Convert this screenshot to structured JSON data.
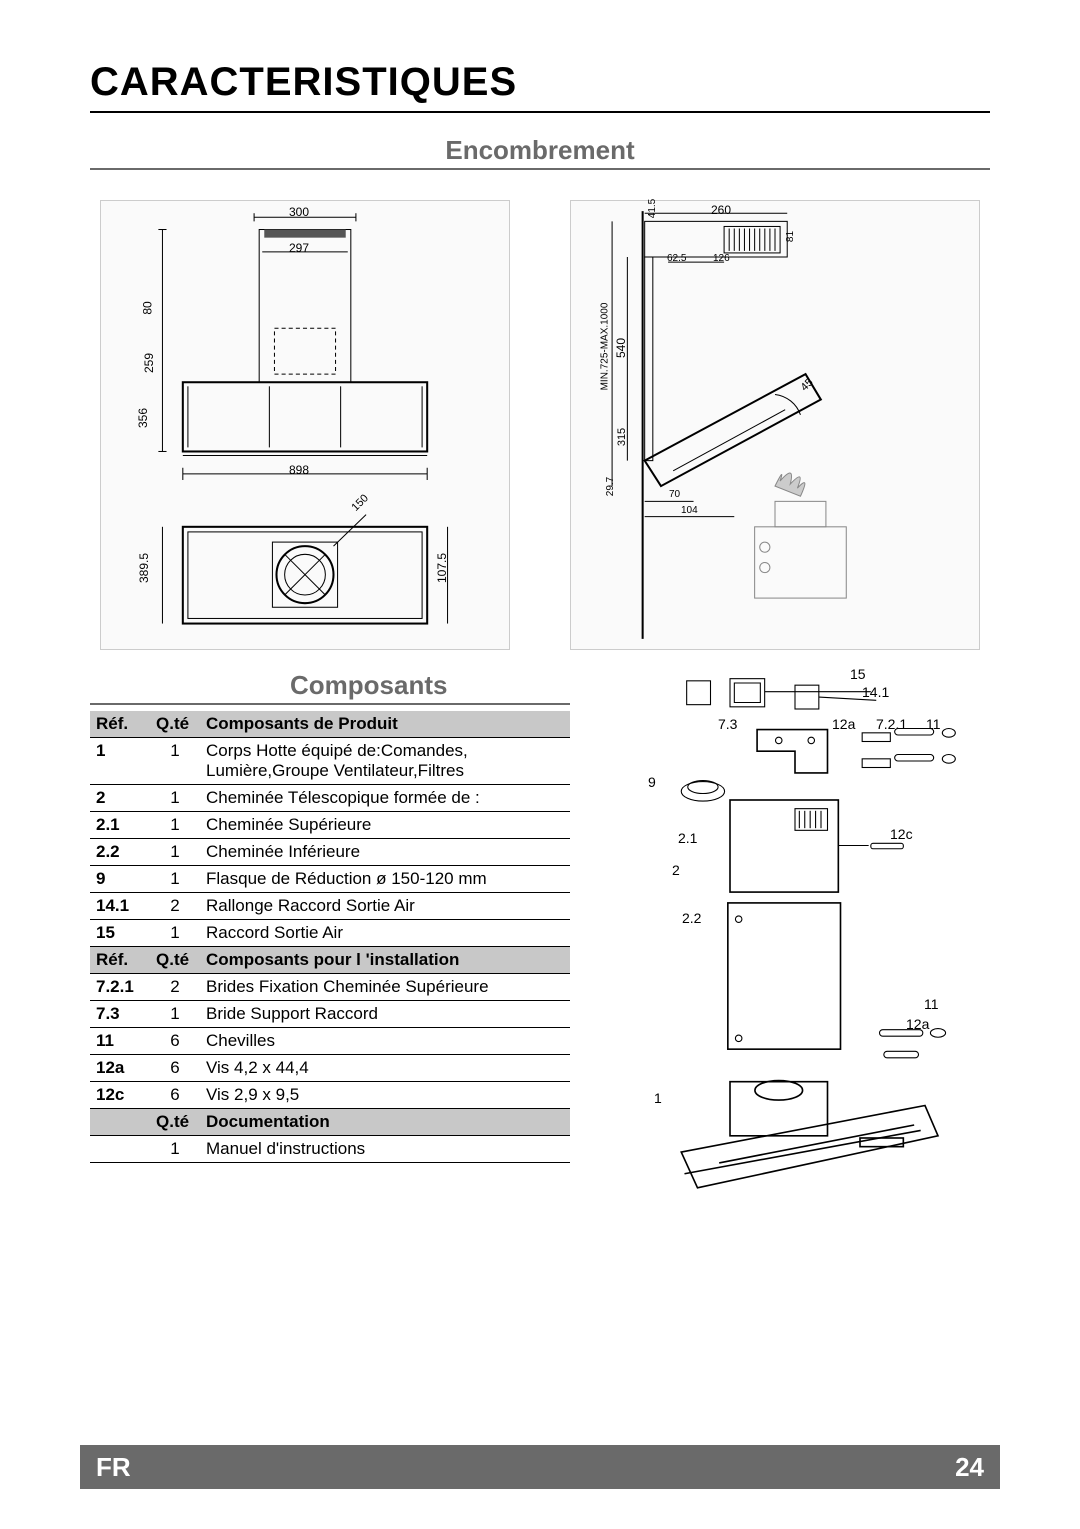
{
  "page": {
    "title": "CARACTERISTIQUES",
    "section_dimensions": "Encombrement",
    "section_components": "Composants",
    "footer_lang": "FR",
    "footer_page": "24"
  },
  "dimensions": {
    "front": {
      "w_top_outer": "300",
      "w_top_inner": "297",
      "h_upper": "80",
      "h_mid": "259",
      "h_total": "356",
      "w_body": "898",
      "h_plan": "389.5",
      "d_plan": "107.5",
      "duct_dia": "150"
    },
    "side": {
      "h_top": "41.5",
      "w_top": "260",
      "h_grille": "81",
      "w_offset": "62.5",
      "w_duct": "126",
      "h_range": "MIN.725-MAX.1000",
      "h_shaft": "540",
      "h_hood": "315",
      "angle": "45",
      "h_bottom": "29.7",
      "w_bot1": "70",
      "w_bot2": "104"
    }
  },
  "tables": {
    "headers1": {
      "ref": "Réf.",
      "qty": "Q.té",
      "desc": "Composants de Produit"
    },
    "rows1": [
      {
        "ref": "1",
        "qty": "1",
        "desc": "Corps Hotte équipé de:Comandes, Lumière,Groupe Ventilateur,Filtres"
      },
      {
        "ref": "2",
        "qty": "1",
        "desc": "Cheminée Télescopique formée de :"
      },
      {
        "ref": "2.1",
        "qty": "1",
        "desc": "Cheminée Supérieure"
      },
      {
        "ref": "2.2",
        "qty": "1",
        "desc": "Cheminée Inférieure"
      },
      {
        "ref": "9",
        "qty": "1",
        "desc": "Flasque de Réduction ø 150-120 mm"
      },
      {
        "ref": "14.1",
        "qty": "2",
        "desc": "Rallonge Raccord Sortie Air"
      },
      {
        "ref": "15",
        "qty": "1",
        "desc": "Raccord Sortie Air"
      }
    ],
    "headers2": {
      "ref": "Réf.",
      "qty": "Q.té",
      "desc": "Composants pour l 'installation"
    },
    "rows2": [
      {
        "ref": "7.2.1",
        "qty": "2",
        "desc": "Brides Fixation Cheminée Supérieure"
      },
      {
        "ref": "7.3",
        "qty": "1",
        "desc": "Bride Support Raccord"
      },
      {
        "ref": "11",
        "qty": "6",
        "desc": "Chevilles"
      },
      {
        "ref": "12a",
        "qty": "6",
        "desc": "Vis 4,2 x 44,4"
      },
      {
        "ref": "12c",
        "qty": "6",
        "desc": "Vis 2,9 x 9,5"
      }
    ],
    "headers3": {
      "ref": "",
      "qty": "Q.té",
      "desc": "Documentation"
    },
    "rows3": [
      {
        "ref": "",
        "qty": "1",
        "desc": "Manuel d'instructions"
      }
    ]
  },
  "exploded_labels": {
    "l15": "15",
    "l14_1": "14.1",
    "l7_3": "7.3",
    "l12a_top": "12a",
    "l7_2_1": "7.2.1",
    "l11_top": "11",
    "l9": "9",
    "l2_1": "2.1",
    "l12c": "12c",
    "l2": "2",
    "l2_2": "2.2",
    "l11_bot": "11",
    "l12a_bot": "12a",
    "l1": "1"
  },
  "colors": {
    "text": "#000000",
    "grey_heading": "#6a6a6a",
    "table_header_bg": "#c8c8c8",
    "footer_bg": "#6a6a6a",
    "footer_text": "#ffffff"
  }
}
